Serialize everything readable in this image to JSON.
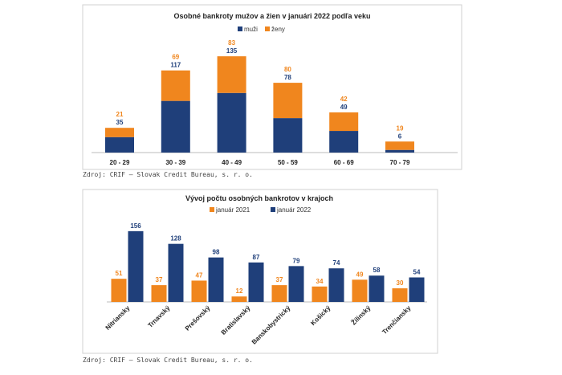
{
  "colors": {
    "blue": "#1f3f7a",
    "orange": "#f0861e",
    "axis": "#bbbbbb"
  },
  "chart_data": [
    {
      "type": "bar",
      "stacked": true,
      "title": "Osobné bankroty mužov a žien v januári 2022 podľa veku",
      "categories": [
        "20 - 29",
        "30 - 39",
        "40 - 49",
        "50 - 59",
        "60 - 69",
        "70 - 79"
      ],
      "series": [
        {
          "name": "muži",
          "values": [
            35,
            117,
            135,
            78,
            49,
            6
          ],
          "color": "#1f3f7a"
        },
        {
          "name": "ženy",
          "values": [
            21,
            69,
            83,
            80,
            42,
            19
          ],
          "color": "#f0861e"
        }
      ],
      "legend": "top-center",
      "grid": false,
      "source": "Zdroj: CRIF – Slovak Credit Bureau, s. r. o."
    },
    {
      "type": "bar",
      "stacked": false,
      "title": "Vývoj počtu osobných bankrotov v krajoch",
      "categories": [
        "Nitriansky",
        "Trnavský",
        "Prešovský",
        "Bratislavský",
        "Banskobystrický",
        "Košický",
        "Žilinský",
        "Trenčiansky"
      ],
      "series": [
        {
          "name": "január 2021",
          "values": [
            51,
            37,
            47,
            12,
            37,
            34,
            49,
            30
          ],
          "color": "#f0861e"
        },
        {
          "name": "január 2022",
          "values": [
            156,
            128,
            98,
            87,
            79,
            74,
            58,
            54
          ],
          "color": "#1f3f7a"
        }
      ],
      "legend": "top-center",
      "grid": false,
      "source": "Zdroj: CRIF – Slovak Credit Bureau, s. r. o."
    }
  ]
}
